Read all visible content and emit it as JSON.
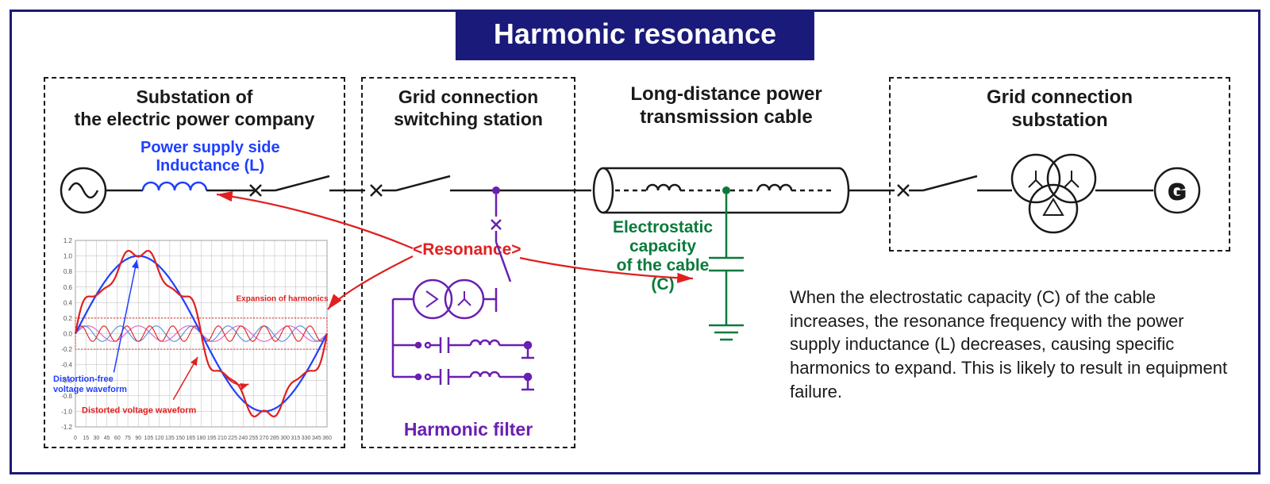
{
  "title": "Harmonic resonance",
  "box1": {
    "line1": "Substation of",
    "line2": "the electric power company",
    "inductance_l1": "Power supply side",
    "inductance_l2": "Inductance (L)"
  },
  "box2": {
    "line1": "Grid connection",
    "line2": "switching station",
    "filter_label": "Harmonic filter"
  },
  "box3": {
    "line1": "Long-distance power",
    "line2": "transmission cable",
    "cap_l1": "Electrostatic",
    "cap_l2": "capacity",
    "cap_l3": "of the cable",
    "cap_l4": "(C)"
  },
  "box4": {
    "line1": "Grid connection",
    "line2": "substation"
  },
  "resonance_label": "<Resonance>",
  "description": "When the electrostatic capacity (C) of the cable increases, the resonance frequency with the power supply inductance (L) decreases, causing specific harmonics to expand. This is likely to result in equipment failure.",
  "chart": {
    "title_expansion": "Expansion of harmonics",
    "label_clean": "Distortion-free",
    "label_clean2": "voltage waveform",
    "label_distorted": "Distorted voltage waveform",
    "xlim": [
      0,
      360
    ],
    "ylim": [
      -1.2,
      1.2
    ],
    "yticks": [
      -1.2,
      -1.0,
      -0.8,
      -0.6,
      -0.4,
      -0.2,
      0,
      0.2,
      0.4,
      0.6,
      0.8,
      1.0,
      1.2
    ],
    "xticks": [
      0,
      15,
      30,
      45,
      60,
      75,
      90,
      105,
      120,
      135,
      150,
      165,
      180,
      195,
      210,
      225,
      240,
      255,
      270,
      285,
      300,
      315,
      330,
      345,
      360
    ],
    "grid_color": "#b8b8b8",
    "bg": "#ffffff",
    "series": {
      "fundamental": {
        "color": "#2040ff",
        "width": 2.2,
        "amp": 1.0,
        "freq": 1
      },
      "distorted": {
        "color": "#e02020",
        "width": 2.2
      },
      "harm_pink": {
        "color": "#e060c0",
        "width": 1.1,
        "amp": 0.1,
        "freq": 5
      },
      "harm_blue": {
        "color": "#5090e0",
        "width": 1.1,
        "amp": 0.1,
        "freq": 7
      },
      "harm_red": {
        "color": "#e02020",
        "width": 1.1,
        "amp": 0.1,
        "freq": 11
      }
    },
    "dotted_band_color": "#e02020",
    "label_fontsize": 11
  },
  "colors": {
    "navy": "#1a1a7a",
    "black": "#1a1a1a",
    "blue": "#2040ff",
    "red": "#e02020",
    "green": "#0a7a3a",
    "purple": "#6a1fb0"
  }
}
